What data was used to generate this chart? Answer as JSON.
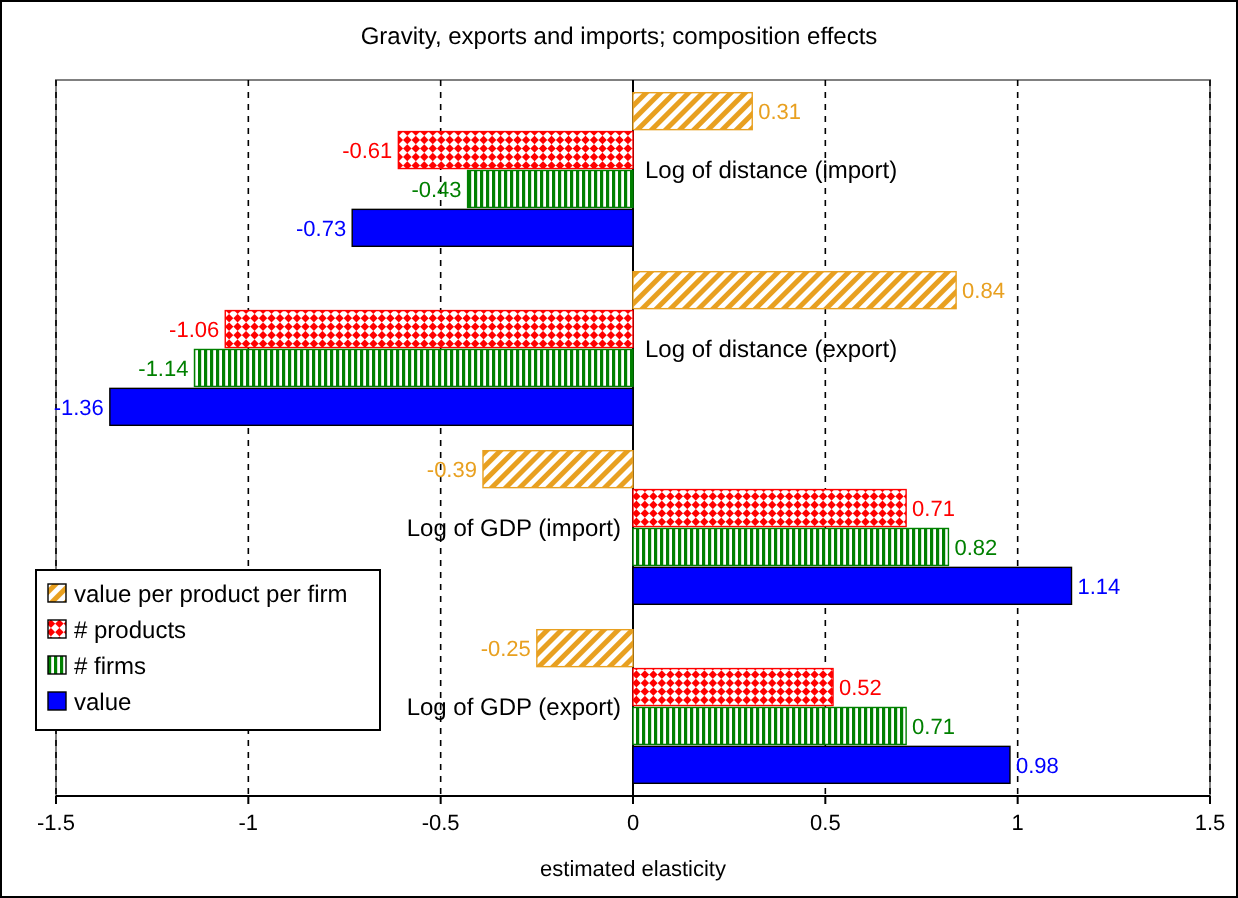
{
  "chart_data": {
    "type": "bar",
    "orientation": "horizontal",
    "title": "Gravity, exports and imports; composition effects",
    "xlabel": "estimated elasticity",
    "categories": [
      "Log of distance (import)",
      "Log of distance (export)",
      "Log of GDP (import)",
      "Log of GDP (export)"
    ],
    "series": [
      {
        "name": "value per product per firm",
        "color": "#e8a020",
        "values": [
          0.31,
          0.84,
          -0.39,
          -0.25
        ]
      },
      {
        "name": "# products",
        "color": "#ff0000",
        "values": [
          -0.61,
          -1.06,
          0.71,
          0.52
        ]
      },
      {
        "name": "# firms",
        "color": "#008000",
        "values": [
          -0.43,
          -1.14,
          0.82,
          0.71
        ]
      },
      {
        "name": "value",
        "color": "#0000ff",
        "values": [
          -0.73,
          -1.36,
          1.14,
          0.98
        ]
      }
    ],
    "xlim": [
      -1.5,
      1.5
    ],
    "xticks": [
      -1.5,
      -1,
      -0.5,
      0,
      0.5,
      1,
      1.5
    ],
    "grid": "x",
    "legend": "bottom left",
    "data_labels": true
  }
}
